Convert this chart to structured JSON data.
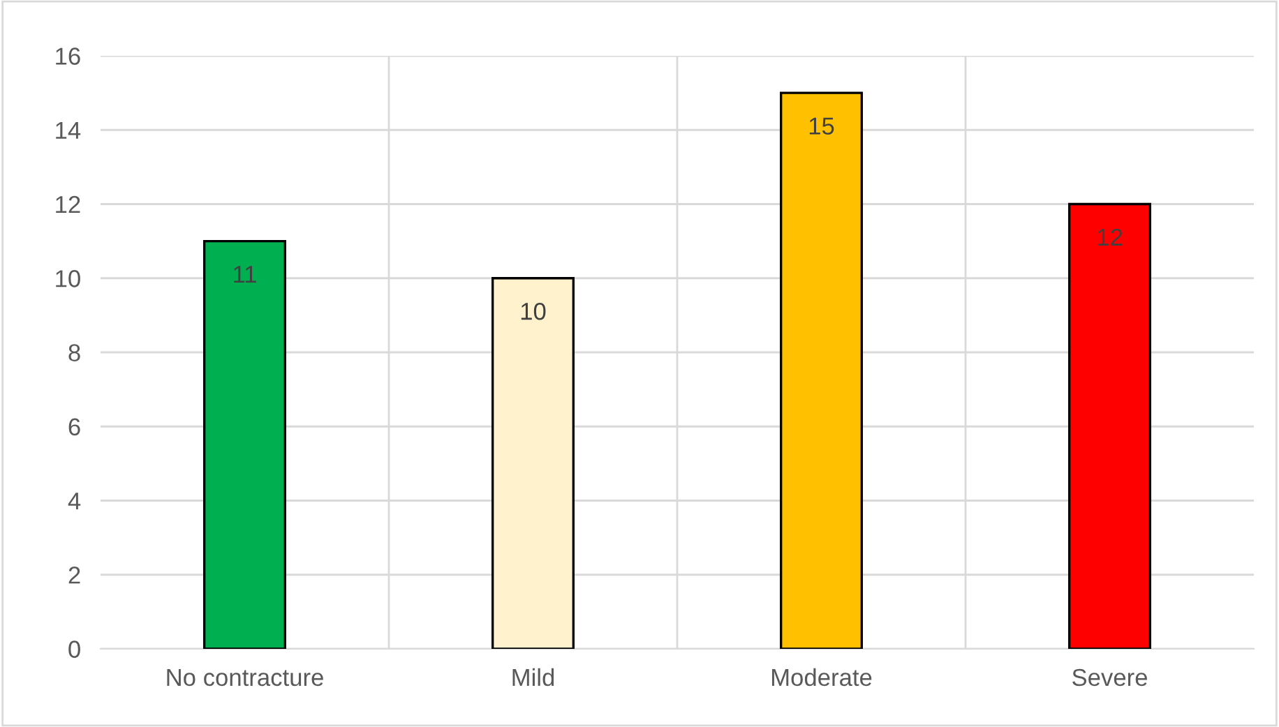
{
  "chart_data": {
    "type": "bar",
    "categories": [
      "No contracture",
      "Mild",
      "Moderate",
      "Severe"
    ],
    "values": [
      11,
      10,
      15,
      12
    ],
    "colors": [
      "#00b050",
      "#fff2cc",
      "#ffc000",
      "#ff0000"
    ],
    "ylim": [
      0,
      16
    ],
    "yticks": [
      0,
      2,
      4,
      6,
      8,
      10,
      12,
      14,
      16
    ],
    "grid": true,
    "data_labels": true
  }
}
